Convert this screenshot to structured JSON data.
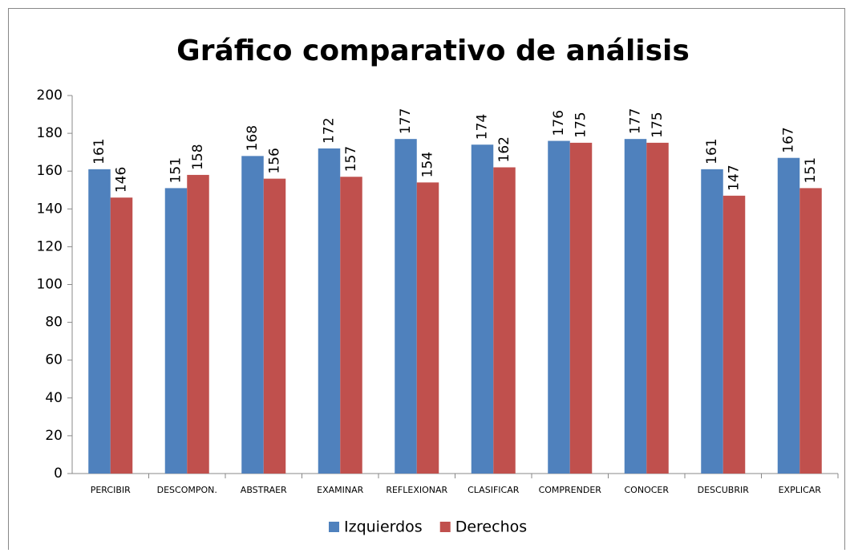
{
  "chart_data": {
    "type": "bar",
    "title": "Gráfico comparativo de análisis",
    "categories": [
      "PERCIBIR",
      "DESCOMPON.",
      "ABSTRAER",
      "EXAMINAR",
      "REFLEXIONAR",
      "CLASIFICAR",
      "COMPRENDER",
      "CONOCER",
      "DESCUBRIR",
      "EXPLICAR"
    ],
    "series": [
      {
        "name": "Izquierdos",
        "color": "#4f81bd",
        "values": [
          161,
          151,
          168,
          172,
          177,
          174,
          176,
          177,
          161,
          167
        ]
      },
      {
        "name": "Derechos",
        "color": "#c0504d",
        "values": [
          146,
          158,
          156,
          157,
          154,
          162,
          175,
          175,
          147,
          151
        ]
      }
    ],
    "ylim": [
      0,
      200
    ],
    "yticks": [
      0,
      20,
      40,
      60,
      80,
      100,
      120,
      140,
      160,
      180,
      200
    ],
    "legend": "bottom"
  }
}
